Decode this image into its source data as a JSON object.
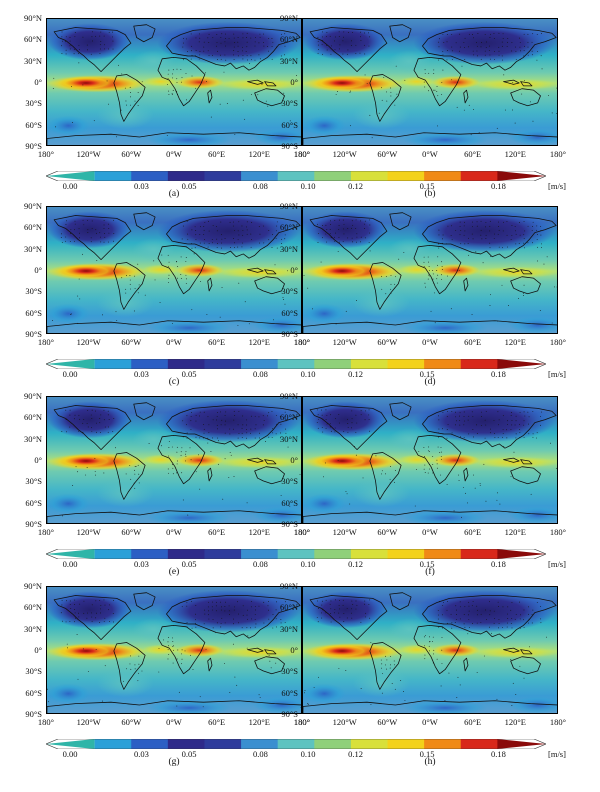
{
  "panels": [
    {
      "label": "(a)"
    },
    {
      "label": "(b)"
    },
    {
      "label": "(c)"
    },
    {
      "label": "(d)"
    },
    {
      "label": "(e)"
    },
    {
      "label": "(f)"
    },
    {
      "label": "(g)"
    },
    {
      "label": "(h)"
    }
  ],
  "lat_ticks": [
    "90°N",
    "60°N",
    "30°N",
    "0°",
    "30°S",
    "60°S",
    "90°S"
  ],
  "lon_ticks": [
    "180°",
    "120°W",
    "60°W",
    "0°W",
    "60°E",
    "120°E",
    "180°"
  ],
  "colorbar": {
    "ticks": [
      "0.00",
      "0.03",
      "0.05",
      "0.08",
      "0.10",
      "0.12",
      "0.15",
      "0.18"
    ],
    "unit": "[m/s]",
    "colors": [
      "#2fb5a8",
      "#2aa0d8",
      "#2c5fc4",
      "#2e2a8a",
      "#2e3c9c",
      "#3a8fd0",
      "#5dc3c0",
      "#8fd07a",
      "#d8e03a",
      "#f3d21a",
      "#f08a16",
      "#d8281a",
      "#8a0a0a"
    ]
  },
  "chart_data": {
    "type": "heatmap",
    "panels": [
      "(a)",
      "(b)",
      "(c)",
      "(d)",
      "(e)",
      "(f)",
      "(g)",
      "(h)"
    ],
    "x_axis": {
      "label": "",
      "ticks": [
        "180°",
        "120°W",
        "60°W",
        "0°W",
        "60°E",
        "120°E",
        "180°"
      ],
      "range": [
        -180,
        180
      ]
    },
    "y_axis": {
      "label": "",
      "ticks": [
        "90°N",
        "60°N",
        "30°N",
        "0°",
        "30°S",
        "60°S",
        "90°S"
      ],
      "range": [
        -90,
        90
      ]
    },
    "color_scale": {
      "min": 0.0,
      "max": 0.2,
      "ticks": [
        0.0,
        0.03,
        0.05,
        0.08,
        0.1,
        0.12,
        0.15,
        0.18
      ],
      "unit": "[m/s]"
    },
    "grid": false,
    "legend": "colorbar-below-each-row"
  }
}
